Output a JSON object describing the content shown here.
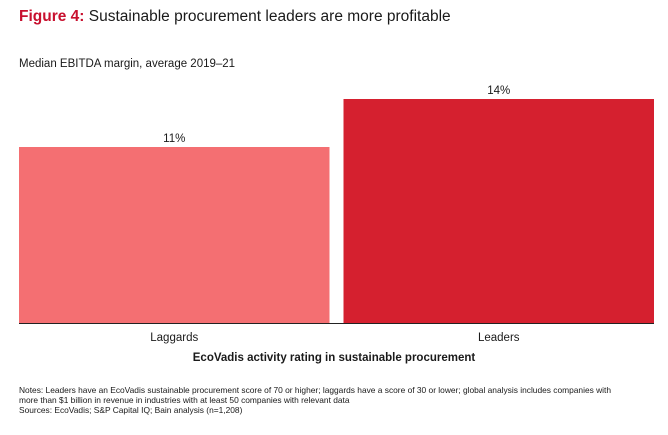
{
  "figure": {
    "label": "Figure 4:",
    "title": "Sustainable procurement leaders are more profitable"
  },
  "subtitle": "Median EBITDA margin, average 2019–21",
  "chart_data": {
    "type": "bar",
    "categories": [
      "Laggards",
      "Leaders"
    ],
    "values": [
      11,
      14
    ],
    "value_labels": [
      "11%",
      "14%"
    ],
    "colors": [
      "#f46f72",
      "#d5202f"
    ],
    "xlabel": "EcoVadis activity rating in sustainable procurement",
    "ylabel": "",
    "ylim": [
      0,
      14
    ],
    "grid": false
  },
  "notes": {
    "line1": "Notes: Leaders have an EcoVadis sustainable procurement score of 70 or higher; laggards have a score of 30 or lower; global analysis includes companies with",
    "line2": "more than $1 billion in revenue in industries with at least 50 companies with relevant data",
    "line3": "Sources: EcoVadis; S&P Capital IQ; Bain analysis (n=1,208)"
  }
}
